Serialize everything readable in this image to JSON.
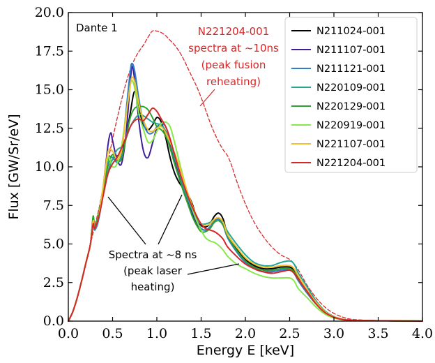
{
  "chart_data": {
    "type": "line",
    "xlabel": "Energy E [keV]",
    "ylabel": "Flux [GW/Sr/eV]",
    "xlim": [
      0.0,
      4.0
    ],
    "ylim": [
      0.0,
      20.0
    ],
    "xticks": [
      0.0,
      0.5,
      1.0,
      1.5,
      2.0,
      2.5,
      3.0,
      3.5,
      4.0
    ],
    "yticks": [
      0.0,
      2.5,
      5.0,
      7.5,
      10.0,
      12.5,
      15.0,
      17.5,
      20.0
    ],
    "xtick_labels": [
      "0.0",
      "0.5",
      "1.0",
      "1.5",
      "2.0",
      "2.5",
      "3.0",
      "3.5",
      "4.0"
    ],
    "ytick_labels": [
      "0.0",
      "2.5",
      "5.0",
      "7.5",
      "10.0",
      "12.5",
      "15.0",
      "17.5",
      "20.0"
    ],
    "grid": false,
    "legend_position": "top-right",
    "corner_label": "Dante 1",
    "annotations": {
      "red_lines": [
        "N221204-001",
        "spectra at ~10ns",
        "(peak fusion",
        "reheating)"
      ],
      "black_lines": [
        "Spectra at ~8 ns",
        "(peak laser",
        "heating)"
      ]
    },
    "series": [
      {
        "name": "N211024-001",
        "color": "#000000",
        "style": "solid",
        "x": [
          0,
          0.05,
          0.1,
          0.15,
          0.2,
          0.25,
          0.28,
          0.3,
          0.33,
          0.36,
          0.4,
          0.45,
          0.5,
          0.55,
          0.6,
          0.65,
          0.7,
          0.75,
          0.8,
          0.85,
          0.9,
          0.95,
          1.0,
          1.05,
          1.1,
          1.15,
          1.2,
          1.25,
          1.3,
          1.35,
          1.4,
          1.45,
          1.5,
          1.55,
          1.6,
          1.65,
          1.7,
          1.75,
          1.8,
          1.9,
          2.0,
          2.1,
          2.2,
          2.3,
          2.4,
          2.5,
          2.55,
          2.6,
          2.7,
          2.8,
          2.9,
          3.0,
          3.1,
          3.2,
          3.4,
          3.6,
          3.8,
          4.0
        ],
        "y": [
          0,
          0.6,
          1.5,
          2.6,
          3.8,
          5.0,
          6.6,
          6.0,
          6.3,
          7.2,
          8.4,
          9.7,
          10.5,
          10.7,
          10.9,
          11.8,
          13.5,
          14.9,
          13.7,
          12.7,
          12.4,
          12.7,
          13.2,
          12.9,
          11.9,
          10.6,
          9.6,
          9.0,
          8.6,
          8.2,
          7.6,
          6.7,
          6.2,
          6.1,
          6.3,
          6.8,
          7.0,
          6.6,
          5.6,
          4.7,
          4.0,
          3.6,
          3.4,
          3.4,
          3.5,
          3.5,
          3.3,
          2.8,
          2.0,
          1.2,
          0.6,
          0.28,
          0.12,
          0.06,
          0.03,
          0.02,
          0.01,
          0.0
        ]
      },
      {
        "name": "N211107-001",
        "color": "#3d1f9e",
        "style": "solid",
        "x": [
          0,
          0.05,
          0.1,
          0.15,
          0.2,
          0.25,
          0.28,
          0.3,
          0.35,
          0.4,
          0.45,
          0.48,
          0.5,
          0.55,
          0.6,
          0.65,
          0.7,
          0.72,
          0.75,
          0.8,
          0.85,
          0.9,
          0.95,
          1.0,
          1.05,
          1.1,
          1.15,
          1.2,
          1.25,
          1.3,
          1.35,
          1.4,
          1.45,
          1.5,
          1.55,
          1.6,
          1.65,
          1.7,
          1.75,
          1.8,
          1.9,
          2.0,
          2.1,
          2.2,
          2.3,
          2.4,
          2.5,
          2.55,
          2.6,
          2.7,
          2.8,
          2.9,
          3.0,
          3.1,
          3.2,
          3.4,
          3.6,
          3.8,
          4.0
        ],
        "y": [
          0,
          0.6,
          1.5,
          2.6,
          3.8,
          5.0,
          6.5,
          6.0,
          7.0,
          9.0,
          11.5,
          12.2,
          11.7,
          10.5,
          10.2,
          12.0,
          15.5,
          16.5,
          15.6,
          12.8,
          11.0,
          10.6,
          11.5,
          12.5,
          12.7,
          12.3,
          11.5,
          10.4,
          9.5,
          8.6,
          7.8,
          7.0,
          6.3,
          6.0,
          5.9,
          6.1,
          6.5,
          6.6,
          6.2,
          5.4,
          4.5,
          3.8,
          3.4,
          3.2,
          3.2,
          3.3,
          3.3,
          3.1,
          2.6,
          1.8,
          1.1,
          0.55,
          0.25,
          0.1,
          0.05,
          0.03,
          0.02,
          0.01,
          0.0
        ]
      },
      {
        "name": "N211121-001",
        "color": "#2e7fc9",
        "style": "solid",
        "x": [
          0,
          0.05,
          0.1,
          0.15,
          0.2,
          0.25,
          0.28,
          0.3,
          0.35,
          0.4,
          0.45,
          0.5,
          0.55,
          0.6,
          0.65,
          0.7,
          0.72,
          0.75,
          0.8,
          0.85,
          0.9,
          0.95,
          1.0,
          1.05,
          1.1,
          1.15,
          1.2,
          1.25,
          1.3,
          1.35,
          1.4,
          1.45,
          1.5,
          1.55,
          1.6,
          1.65,
          1.7,
          1.75,
          1.8,
          1.9,
          2.0,
          2.1,
          2.2,
          2.3,
          2.4,
          2.5,
          2.55,
          2.6,
          2.7,
          2.8,
          2.9,
          3.0,
          3.1,
          3.2,
          3.4,
          3.6,
          3.8,
          4.0
        ],
        "y": [
          0,
          0.6,
          1.5,
          2.6,
          3.8,
          5.0,
          6.3,
          5.9,
          6.8,
          8.6,
          10.5,
          10.6,
          10.3,
          10.8,
          13.5,
          16.2,
          16.7,
          16.2,
          14.3,
          12.8,
          12.2,
          12.2,
          12.6,
          12.8,
          12.6,
          11.8,
          10.7,
          9.8,
          8.8,
          8.0,
          7.2,
          6.5,
          6.0,
          5.9,
          6.1,
          6.5,
          6.6,
          6.2,
          5.4,
          4.5,
          3.8,
          3.4,
          3.2,
          3.2,
          3.3,
          3.3,
          3.1,
          2.6,
          1.8,
          1.1,
          0.55,
          0.25,
          0.1,
          0.05,
          0.03,
          0.02,
          0.01,
          0.0
        ]
      },
      {
        "name": "N220109-001",
        "color": "#26a69a",
        "style": "solid",
        "x": [
          0,
          0.05,
          0.1,
          0.15,
          0.2,
          0.25,
          0.28,
          0.3,
          0.35,
          0.4,
          0.45,
          0.5,
          0.55,
          0.6,
          0.65,
          0.7,
          0.75,
          0.8,
          0.85,
          0.9,
          0.95,
          1.0,
          1.05,
          1.1,
          1.15,
          1.2,
          1.25,
          1.3,
          1.35,
          1.4,
          1.45,
          1.5,
          1.55,
          1.6,
          1.65,
          1.7,
          1.75,
          1.8,
          1.9,
          2.0,
          2.1,
          2.2,
          2.3,
          2.4,
          2.5,
          2.55,
          2.6,
          2.7,
          2.8,
          2.9,
          3.0,
          3.1,
          3.2,
          3.4,
          3.6,
          3.8,
          4.0
        ],
        "y": [
          0,
          0.6,
          1.5,
          2.6,
          3.8,
          5.0,
          6.7,
          6.1,
          7.2,
          8.5,
          9.7,
          10.5,
          11.1,
          11.3,
          11.8,
          12.6,
          13.1,
          13.4,
          13.3,
          13.1,
          12.9,
          12.8,
          12.7,
          12.3,
          11.6,
          10.6,
          9.7,
          8.7,
          7.9,
          7.2,
          6.6,
          6.3,
          6.3,
          6.4,
          6.6,
          6.7,
          6.4,
          5.8,
          5.0,
          4.3,
          3.8,
          3.6,
          3.6,
          3.8,
          3.9,
          3.7,
          3.1,
          2.2,
          1.3,
          0.65,
          0.3,
          0.12,
          0.06,
          0.03,
          0.02,
          0.01,
          0.0
        ]
      },
      {
        "name": "N220129-001",
        "color": "#2ca02c",
        "style": "solid",
        "x": [
          0,
          0.05,
          0.1,
          0.15,
          0.2,
          0.25,
          0.28,
          0.3,
          0.35,
          0.4,
          0.45,
          0.5,
          0.55,
          0.6,
          0.65,
          0.7,
          0.75,
          0.8,
          0.85,
          0.9,
          0.95,
          1.0,
          1.05,
          1.1,
          1.15,
          1.2,
          1.25,
          1.3,
          1.35,
          1.4,
          1.45,
          1.5,
          1.55,
          1.6,
          1.65,
          1.7,
          1.75,
          1.8,
          1.9,
          2.0,
          2.1,
          2.2,
          2.3,
          2.4,
          2.5,
          2.55,
          2.6,
          2.7,
          2.8,
          2.9,
          3.0,
          3.1,
          3.2,
          3.4,
          3.6,
          3.8,
          4.0
        ],
        "y": [
          0,
          0.6,
          1.5,
          2.6,
          3.8,
          5.0,
          6.8,
          6.1,
          7.2,
          8.8,
          10.1,
          10.8,
          10.4,
          10.5,
          11.8,
          13.2,
          13.8,
          13.9,
          13.9,
          13.7,
          13.2,
          12.6,
          12.4,
          12.0,
          11.2,
          10.2,
          9.3,
          8.4,
          7.6,
          6.8,
          6.2,
          5.8,
          5.8,
          6.0,
          6.4,
          6.5,
          6.2,
          5.5,
          4.6,
          3.9,
          3.5,
          3.3,
          3.3,
          3.4,
          3.4,
          3.2,
          2.7,
          1.9,
          1.1,
          0.55,
          0.25,
          0.1,
          0.05,
          0.03,
          0.02,
          0.01,
          0.0
        ]
      },
      {
        "name": "N220919-001",
        "color": "#86e84a",
        "style": "solid",
        "x": [
          0,
          0.05,
          0.1,
          0.15,
          0.2,
          0.25,
          0.28,
          0.3,
          0.35,
          0.4,
          0.45,
          0.5,
          0.55,
          0.6,
          0.65,
          0.7,
          0.72,
          0.75,
          0.8,
          0.85,
          0.9,
          0.95,
          1.0,
          1.05,
          1.1,
          1.15,
          1.2,
          1.25,
          1.3,
          1.35,
          1.4,
          1.45,
          1.5,
          1.55,
          1.6,
          1.65,
          1.7,
          1.75,
          1.8,
          1.9,
          2.0,
          2.1,
          2.2,
          2.3,
          2.4,
          2.5,
          2.55,
          2.6,
          2.7,
          2.8,
          2.9,
          3.0,
          3.1,
          3.2,
          3.4,
          3.6,
          3.8,
          4.0
        ],
        "y": [
          0,
          0.6,
          1.5,
          2.6,
          3.8,
          5.0,
          6.4,
          6.0,
          7.0,
          9.0,
          10.6,
          10.0,
          10.2,
          11.3,
          13.3,
          15.3,
          15.6,
          15.1,
          13.4,
          12.4,
          11.6,
          11.7,
          12.3,
          12.8,
          12.9,
          12.6,
          11.6,
          10.4,
          9.3,
          8.2,
          7.3,
          6.5,
          5.9,
          5.4,
          5.2,
          5.1,
          4.9,
          4.6,
          4.2,
          3.7,
          3.4,
          3.1,
          2.9,
          2.8,
          2.8,
          2.8,
          2.6,
          2.1,
          1.5,
          0.9,
          0.45,
          0.2,
          0.09,
          0.04,
          0.03,
          0.02,
          0.01,
          0.0
        ]
      },
      {
        "name": "N221107-001",
        "color": "#f5c02c",
        "style": "solid",
        "x": [
          0,
          0.05,
          0.1,
          0.15,
          0.2,
          0.25,
          0.28,
          0.3,
          0.35,
          0.4,
          0.45,
          0.5,
          0.55,
          0.6,
          0.65,
          0.7,
          0.72,
          0.75,
          0.8,
          0.85,
          0.9,
          0.95,
          1.0,
          1.05,
          1.1,
          1.15,
          1.2,
          1.25,
          1.3,
          1.35,
          1.4,
          1.45,
          1.5,
          1.55,
          1.6,
          1.65,
          1.7,
          1.75,
          1.8,
          1.9,
          2.0,
          2.1,
          2.2,
          2.3,
          2.4,
          2.5,
          2.55,
          2.6,
          2.7,
          2.8,
          2.9,
          3.0,
          3.1,
          3.2,
          3.4,
          3.6,
          3.8,
          4.0
        ],
        "y": [
          0,
          0.6,
          1.5,
          2.6,
          3.8,
          5.0,
          6.5,
          6.0,
          7.0,
          9.0,
          11.0,
          11.0,
          10.5,
          11.0,
          13.2,
          15.3,
          15.8,
          15.5,
          14.0,
          13.0,
          12.4,
          12.3,
          12.5,
          12.6,
          12.2,
          11.6,
          10.9,
          10.1,
          9.2,
          8.3,
          7.5,
          6.8,
          6.3,
          6.2,
          6.3,
          6.6,
          6.7,
          6.4,
          5.6,
          4.8,
          4.1,
          3.7,
          3.5,
          3.5,
          3.6,
          3.6,
          3.4,
          2.9,
          2.0,
          1.2,
          0.6,
          0.28,
          0.12,
          0.06,
          0.03,
          0.02,
          0.01,
          0.0
        ]
      },
      {
        "name": "N221204-001",
        "color": "#d62728",
        "style": "solid",
        "x": [
          0,
          0.05,
          0.1,
          0.15,
          0.2,
          0.25,
          0.28,
          0.3,
          0.35,
          0.4,
          0.45,
          0.5,
          0.55,
          0.6,
          0.65,
          0.7,
          0.75,
          0.8,
          0.85,
          0.9,
          0.95,
          1.0,
          1.05,
          1.1,
          1.15,
          1.2,
          1.25,
          1.3,
          1.35,
          1.4,
          1.45,
          1.5,
          1.55,
          1.6,
          1.65,
          1.7,
          1.75,
          1.8,
          1.9,
          2.0,
          2.1,
          2.2,
          2.3,
          2.4,
          2.5,
          2.55,
          2.6,
          2.7,
          2.8,
          2.9,
          3.0,
          3.1,
          3.2,
          3.4,
          3.6,
          3.8,
          4.0
        ],
        "y": [
          0,
          0.6,
          1.5,
          2.6,
          3.8,
          5.0,
          6.3,
          6.0,
          6.9,
          8.3,
          9.6,
          10.2,
          10.6,
          11.2,
          11.9,
          12.6,
          13.0,
          13.1,
          13.0,
          13.4,
          13.8,
          13.6,
          13.1,
          12.6,
          11.8,
          10.8,
          9.8,
          8.9,
          8.1,
          7.4,
          6.8,
          6.3,
          6.0,
          5.9,
          5.8,
          5.6,
          5.3,
          4.8,
          4.2,
          3.7,
          3.4,
          3.2,
          3.1,
          3.2,
          3.3,
          3.1,
          2.7,
          1.9,
          1.1,
          0.55,
          0.25,
          0.1,
          0.05,
          0.03,
          0.02,
          0.01,
          0.0
        ]
      },
      {
        "name": "N221204-001 (~10ns)",
        "color": "#d62728",
        "style": "dashed",
        "in_legend": false,
        "x": [
          0,
          0.05,
          0.1,
          0.15,
          0.2,
          0.25,
          0.3,
          0.35,
          0.4,
          0.45,
          0.5,
          0.55,
          0.6,
          0.65,
          0.7,
          0.75,
          0.8,
          0.85,
          0.9,
          0.95,
          1.0,
          1.05,
          1.1,
          1.15,
          1.2,
          1.25,
          1.3,
          1.35,
          1.4,
          1.45,
          1.5,
          1.55,
          1.6,
          1.65,
          1.7,
          1.75,
          1.8,
          1.85,
          1.9,
          2.0,
          2.1,
          2.2,
          2.3,
          2.4,
          2.5,
          2.55,
          2.6,
          2.65,
          2.7,
          2.8,
          2.9,
          3.0,
          3.1,
          3.2,
          3.4,
          3.6,
          3.8,
          4.0
        ],
        "y": [
          0,
          0.6,
          1.5,
          2.6,
          3.8,
          5.0,
          6.2,
          7.4,
          8.9,
          10.4,
          11.8,
          13.1,
          14.3,
          15.4,
          16.3,
          17.0,
          17.5,
          17.9,
          18.4,
          18.8,
          18.8,
          18.7,
          18.5,
          18.2,
          17.9,
          17.5,
          17.0,
          16.4,
          15.8,
          15.2,
          14.5,
          13.7,
          12.9,
          12.2,
          11.6,
          11.1,
          10.7,
          10.0,
          9.1,
          7.6,
          6.4,
          5.5,
          4.8,
          4.3,
          4.0,
          3.7,
          3.3,
          2.8,
          2.3,
          1.5,
          0.9,
          0.5,
          0.26,
          0.12,
          0.05,
          0.03,
          0.02,
          0.0
        ]
      }
    ]
  }
}
